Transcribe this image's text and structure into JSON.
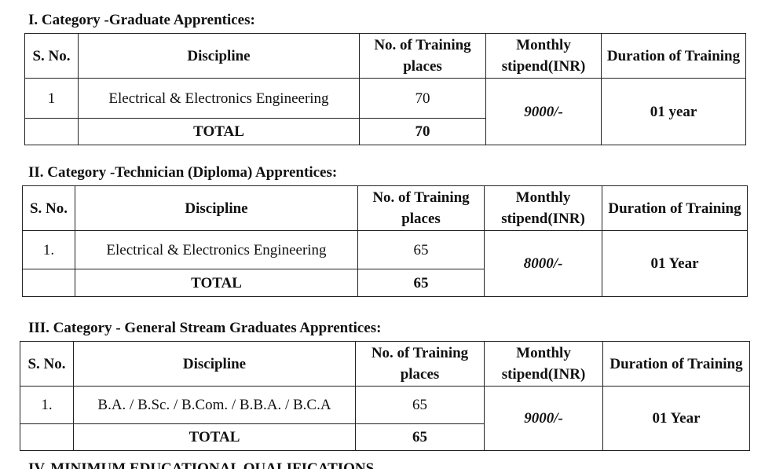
{
  "headers": {
    "sno": "S. No.",
    "discipline": "Discipline",
    "places": "No. of Training places",
    "stipend": "Monthly stipend(INR)",
    "duration": "Duration of Training"
  },
  "total_label": "TOTAL",
  "categories": [
    {
      "title": "I. Category -Graduate Apprentices:",
      "row": {
        "sno": "1",
        "discipline": "Electrical & Electronics Engineering",
        "places": "70"
      },
      "total": "70",
      "stipend": "9000/-",
      "duration": "01 year"
    },
    {
      "title": "II. Category -Technician (Diploma) Apprentices:",
      "row": {
        "sno": "1.",
        "discipline": "Electrical & Electronics Engineering",
        "places": "65"
      },
      "total": "65",
      "stipend": "8000/-",
      "duration": "01 Year"
    },
    {
      "title": "III. Category - General Stream Graduates Apprentices:",
      "row": {
        "sno": "1.",
        "discipline": "B.A. / B.Sc. / B.Com. / B.B.A. / B.C.A",
        "places": "65"
      },
      "total": "65",
      "stipend": "9000/-",
      "duration": "01 Year"
    }
  ],
  "next_section_partial": "IV. MINIMUM EDUCATIONAL QUALIFICATIONS"
}
